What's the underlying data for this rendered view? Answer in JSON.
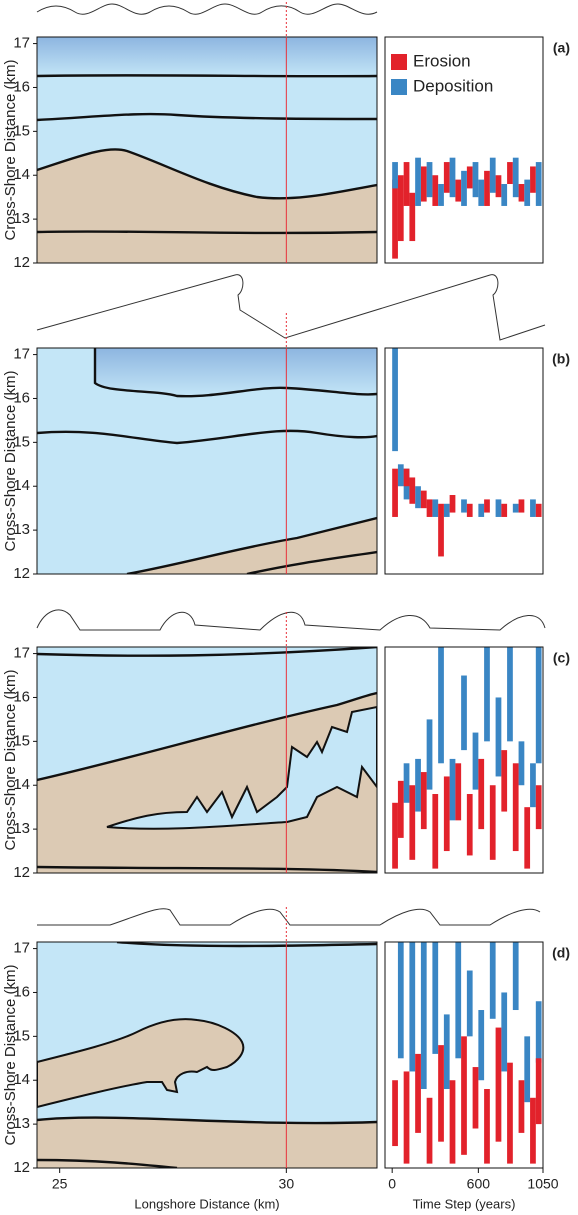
{
  "chart_data": [
    {
      "type": "map",
      "ylabel": "Cross-Shore Distance (km)",
      "xlim": [
        24.5,
        32
      ],
      "ylim": [
        12,
        17.15
      ],
      "yticks": [
        12,
        13,
        14,
        15,
        16,
        17
      ],
      "marker_x": 30,
      "marker_color": "#e8313a"
    },
    {
      "type": "raster",
      "label": "(a)",
      "xlim": [
        -50,
        1050
      ],
      "ylim": [
        12,
        17.15
      ],
      "cell_width": 40,
      "legend": "upper left",
      "series": [
        {
          "name": "Erosion",
          "color": "#e2222b",
          "cells": [
            [
              0,
              12.1,
              13.9
            ],
            [
              40,
              12.5,
              14.0
            ],
            [
              80,
              13.3,
              14.3
            ],
            [
              120,
              12.5,
              13.6
            ],
            [
              200,
              13.4,
              14.2
            ],
            [
              280,
              13.3,
              14.0
            ],
            [
              360,
              13.6,
              14.3
            ],
            [
              440,
              13.4,
              13.9
            ],
            [
              520,
              13.7,
              14.2
            ],
            [
              640,
              13.3,
              14.1
            ],
            [
              720,
              13.5,
              14.0
            ],
            [
              800,
              13.8,
              14.3
            ],
            [
              880,
              13.4,
              13.8
            ],
            [
              960,
              13.6,
              14.2
            ]
          ]
        },
        {
          "name": "Deposition",
          "color": "#3a86c4",
          "cells": [
            [
              0,
              13.7,
              14.3
            ],
            [
              160,
              13.3,
              14.4
            ],
            [
              240,
              13.5,
              14.3
            ],
            [
              320,
              13.3,
              13.8
            ],
            [
              400,
              13.5,
              14.4
            ],
            [
              480,
              13.3,
              14.1
            ],
            [
              560,
              13.5,
              14.3
            ],
            [
              600,
              13.3,
              13.9
            ],
            [
              680,
              13.6,
              14.4
            ],
            [
              760,
              13.3,
              13.8
            ],
            [
              840,
              13.5,
              14.4
            ],
            [
              920,
              13.3,
              13.9
            ],
            [
              1000,
              13.3,
              14.3
            ]
          ]
        }
      ]
    },
    {
      "type": "map",
      "ylabel": "Cross-Shore Distance (km)",
      "xlim": [
        24.5,
        32
      ],
      "ylim": [
        12,
        17.15
      ],
      "yticks": [
        12,
        13,
        14,
        15,
        16,
        17
      ],
      "marker_x": 30,
      "marker_color": "#e8313a"
    },
    {
      "type": "raster",
      "label": "(b)",
      "xlim": [
        -50,
        1050
      ],
      "ylim": [
        12,
        17.15
      ],
      "cell_width": 40,
      "series": [
        {
          "color": "#3a86c4",
          "cells": [
            [
              0,
              14.8,
              17.15
            ],
            [
              40,
              14.0,
              14.5
            ],
            [
              80,
              13.7,
              14.4
            ],
            [
              160,
              13.5,
              14.0
            ],
            [
              280,
              13.3,
              13.7
            ],
            [
              360,
              13.3,
              13.6
            ],
            [
              480,
              13.4,
              13.7
            ],
            [
              600,
              13.3,
              13.6
            ],
            [
              720,
              13.3,
              13.7
            ],
            [
              840,
              13.4,
              13.6
            ],
            [
              960,
              13.3,
              13.7
            ]
          ]
        },
        {
          "color": "#e2222b",
          "cells": [
            [
              0,
              13.3,
              14.4
            ],
            [
              80,
              14.0,
              14.4
            ],
            [
              120,
              13.6,
              14.2
            ],
            [
              200,
              13.5,
              13.9
            ],
            [
              240,
              13.3,
              13.7
            ],
            [
              320,
              12.4,
              13.6
            ],
            [
              400,
              13.4,
              13.8
            ],
            [
              520,
              13.3,
              13.6
            ],
            [
              640,
              13.4,
              13.7
            ],
            [
              760,
              13.3,
              13.6
            ],
            [
              880,
              13.4,
              13.7
            ],
            [
              1000,
              13.3,
              13.6
            ]
          ]
        }
      ]
    },
    {
      "type": "map",
      "ylabel": "Cross-Shore Distance (km)",
      "xlim": [
        24.5,
        32
      ],
      "ylim": [
        12,
        17.15
      ],
      "yticks": [
        12,
        13,
        14,
        15,
        16,
        17
      ],
      "marker_x": 30,
      "marker_color": "#e8313a"
    },
    {
      "type": "raster",
      "label": "(c)",
      "xlim": [
        -50,
        1050
      ],
      "ylim": [
        12,
        17.15
      ],
      "cell_width": 40,
      "series": [
        {
          "color": "#3a86c4",
          "cells": [
            [
              80,
              13.6,
              14.5
            ],
            [
              160,
              13.4,
              14.6
            ],
            [
              240,
              13.9,
              15.5
            ],
            [
              320,
              14.5,
              17.15
            ],
            [
              400,
              13.2,
              14.6
            ],
            [
              480,
              14.8,
              16.5
            ],
            [
              560,
              13.9,
              15.2
            ],
            [
              640,
              15.0,
              17.15
            ],
            [
              720,
              14.2,
              16.0
            ],
            [
              800,
              15.0,
              17.15
            ],
            [
              880,
              14.0,
              15.0
            ],
            [
              960,
              13.5,
              14.5
            ],
            [
              1000,
              14.5,
              17.15
            ]
          ]
        },
        {
          "color": "#e2222b",
          "cells": [
            [
              0,
              12.1,
              13.6
            ],
            [
              40,
              12.8,
              14.1
            ],
            [
              120,
              12.3,
              14.0
            ],
            [
              200,
              13.0,
              14.3
            ],
            [
              280,
              12.1,
              13.8
            ],
            [
              360,
              12.5,
              14.2
            ],
            [
              440,
              13.2,
              14.5
            ],
            [
              520,
              12.4,
              13.8
            ],
            [
              600,
              13.0,
              14.6
            ],
            [
              680,
              12.3,
              14.0
            ],
            [
              760,
              13.4,
              14.8
            ],
            [
              840,
              12.5,
              14.5
            ],
            [
              920,
              12.1,
              13.5
            ],
            [
              1000,
              13.0,
              14.0
            ]
          ]
        }
      ]
    },
    {
      "type": "map",
      "ylabel": "Cross-Shore Distance (km)",
      "xlabel": "Longshore Distance (km)",
      "xlim": [
        24.5,
        32
      ],
      "xticks": [
        25,
        30
      ],
      "ylim": [
        12,
        17.15
      ],
      "yticks": [
        12,
        13,
        14,
        15,
        16,
        17
      ],
      "marker_x": 30,
      "marker_color": "#e8313a"
    },
    {
      "type": "raster",
      "label": "(d)",
      "xlabel": "Time Step (years)",
      "xlim": [
        -50,
        1050
      ],
      "xticks": [
        0,
        600,
        1050
      ],
      "ylim": [
        12,
        17.15
      ],
      "cell_width": 40,
      "series": [
        {
          "color": "#3a86c4",
          "cells": [
            [
              40,
              14.5,
              17.15
            ],
            [
              120,
              14.2,
              17.15
            ],
            [
              200,
              13.8,
              17.15
            ],
            [
              280,
              14.6,
              17.15
            ],
            [
              360,
              13.8,
              15.5
            ],
            [
              440,
              14.5,
              17.15
            ],
            [
              520,
              15.0,
              16.5
            ],
            [
              600,
              14.0,
              15.6
            ],
            [
              680,
              15.4,
              17.15
            ],
            [
              760,
              14.2,
              16.0
            ],
            [
              840,
              15.6,
              17.15
            ],
            [
              920,
              13.5,
              15.0
            ],
            [
              1000,
              14.4,
              15.8
            ]
          ]
        },
        {
          "color": "#e2222b",
          "cells": [
            [
              0,
              12.5,
              14.0
            ],
            [
              80,
              12.1,
              14.2
            ],
            [
              160,
              12.8,
              14.6
            ],
            [
              240,
              12.1,
              13.6
            ],
            [
              320,
              12.6,
              14.8
            ],
            [
              400,
              12.1,
              14.0
            ],
            [
              480,
              12.3,
              15.0
            ],
            [
              560,
              12.9,
              14.3
            ],
            [
              640,
              12.1,
              13.8
            ],
            [
              720,
              12.6,
              15.2
            ],
            [
              800,
              12.1,
              14.4
            ],
            [
              880,
              12.8,
              14.0
            ],
            [
              960,
              12.1,
              13.6
            ],
            [
              1000,
              13.0,
              14.5
            ]
          ]
        }
      ]
    }
  ]
}
